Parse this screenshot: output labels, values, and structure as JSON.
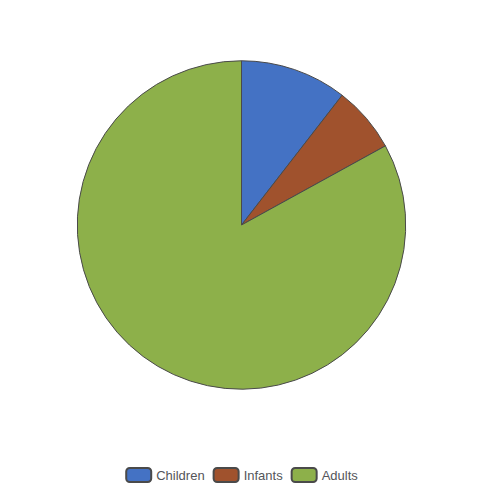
{
  "chart_data": {
    "type": "pie",
    "categories": [
      "Children",
      "Infants",
      "Adults"
    ],
    "values": [
      10.5,
      6.5,
      83.0
    ],
    "colors": [
      "#4472C4",
      "#A0522D",
      "#8DB04A"
    ],
    "legend": "bottom"
  }
}
